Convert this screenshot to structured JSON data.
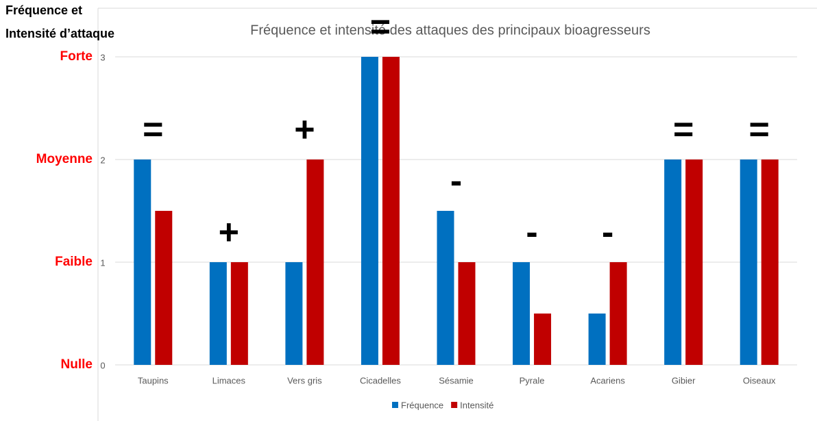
{
  "chart_data": {
    "type": "bar",
    "title": "Fréquence et intensité des attaques des principaux bioagresseurs",
    "y_label": [
      "Fréquence et",
      "Intensité d’attaque"
    ],
    "categories": [
      "Taupins",
      "Limaces",
      "Vers gris",
      "Cicadelles",
      "Sésamie",
      "Pyrale",
      "Acariens",
      "Gibier",
      "Oiseaux"
    ],
    "series": [
      {
        "name": "Fréquence",
        "color": "#0070c0",
        "values": [
          2,
          1,
          1,
          3,
          1.5,
          1,
          0.5,
          2,
          2
        ]
      },
      {
        "name": "Intensité",
        "color": "#c00000",
        "values": [
          1.5,
          1,
          2,
          3,
          1,
          0.5,
          1,
          2,
          2
        ]
      }
    ],
    "annotations": [
      "=",
      "+",
      "+",
      "=",
      "-",
      "-",
      "-",
      "=",
      "="
    ],
    "ylim": [
      0,
      3
    ],
    "yticks": [
      0,
      1,
      2,
      3
    ],
    "ytick_names": [
      "Nulle",
      "Faible",
      "Moyenne",
      "Forte"
    ],
    "grid": true,
    "legend": "bottom"
  }
}
